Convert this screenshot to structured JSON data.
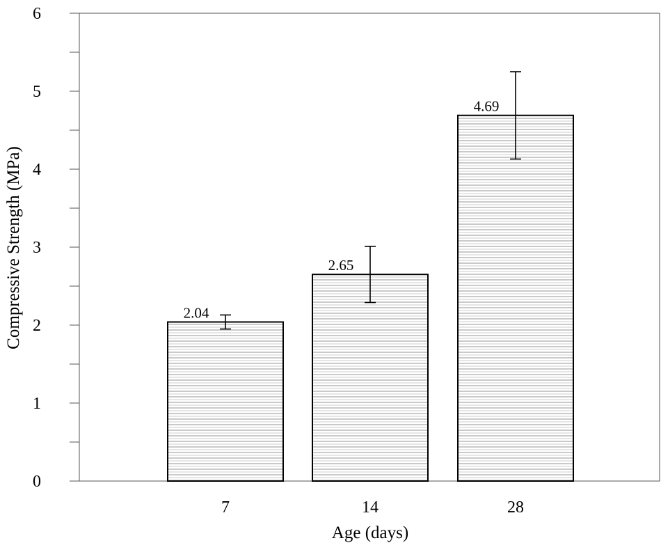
{
  "chart_data": {
    "type": "bar",
    "categories": [
      "7",
      "14",
      "28"
    ],
    "values": [
      2.04,
      2.65,
      4.69
    ],
    "error_low": [
      1.95,
      2.29,
      4.13
    ],
    "error_high": [
      2.13,
      3.01,
      5.25
    ],
    "data_labels": [
      "2.04",
      "2.65",
      "4.69"
    ],
    "xlabel": "Age (days)",
    "ylabel": "Compressive Strength (MPa)",
    "ylim": [
      0,
      6
    ],
    "yticks": [
      "0",
      "1",
      "2",
      "3",
      "4",
      "5",
      "6"
    ],
    "grid": false,
    "bar_fill": "horizontal-hatch",
    "colors": {
      "bar_edge": "#000000",
      "hatch": "#bdbdbd",
      "background": "#ffffff"
    }
  }
}
